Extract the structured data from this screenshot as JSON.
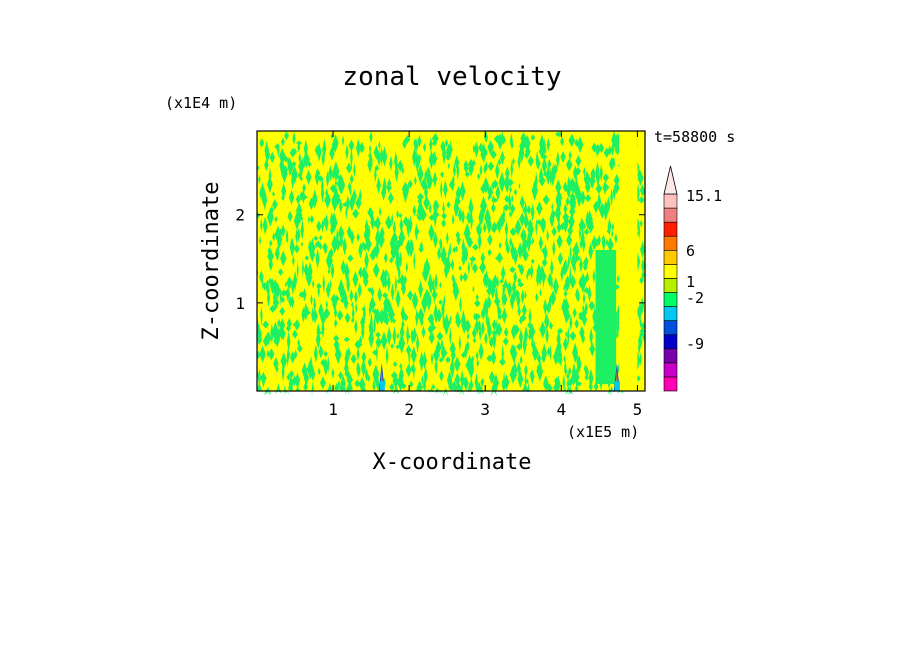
{
  "chart_data": {
    "type": "heatmap",
    "title": "zonal velocity",
    "time_label": "t=58800 s",
    "xlabel": "X-coordinate",
    "ylabel": "Z-coordinate",
    "x_unit": "(x1E5 m)",
    "y_unit": "(x1E4 m)",
    "xlim": [
      0,
      5.1
    ],
    "ylim": [
      0,
      2.95
    ],
    "x_ticks": [
      1,
      2,
      3,
      4,
      5
    ],
    "y_ticks": [
      1,
      2
    ],
    "x_tick_labels": [
      "1",
      "2",
      "3",
      "4",
      "5"
    ],
    "y_tick_labels": [
      "1",
      "2"
    ],
    "colorbar": {
      "labels": [
        "15.1",
        "6",
        "1",
        "-2",
        "-9"
      ],
      "colors": [
        "#ff00b4",
        "#c800c8",
        "#7800aa",
        "#0000c8",
        "#0050dc",
        "#00c8f0",
        "#00ff64",
        "#b4f000",
        "#ffff00",
        "#ffc800",
        "#ff7800",
        "#ff1e00",
        "#f08080",
        "#ffc0c0",
        "#ffe8e8"
      ]
    },
    "field_colors": {
      "dominant": "#ffff00",
      "secondary": "#1ef064"
    }
  }
}
